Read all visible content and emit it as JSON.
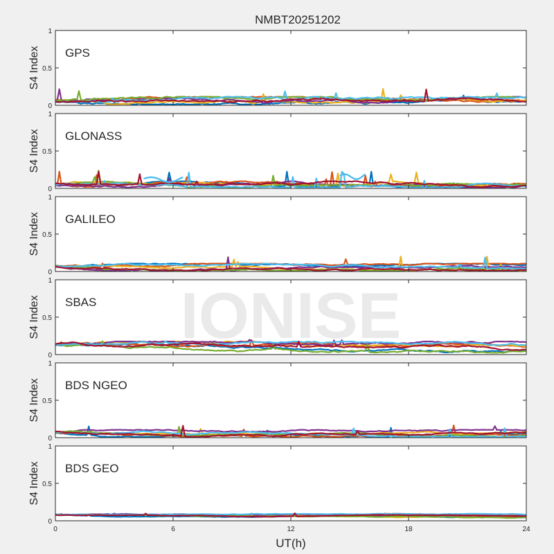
{
  "figure_title": "NMBT20251202",
  "watermark": "IONISE",
  "colors": {
    "background": "#f0f0f0",
    "series": [
      "#0072BD",
      "#D95319",
      "#EDB120",
      "#7E2F8E",
      "#77AC30",
      "#4DBEEE",
      "#A2142F"
    ],
    "watermark": "#e6e6e6"
  },
  "chart_data": [
    {
      "type": "line",
      "panel_label": "GPS",
      "ylabel": "S4 Index",
      "ylim": [
        0,
        1
      ],
      "yticks": [
        "0",
        "0.5",
        "1"
      ],
      "xlim": [
        0,
        24
      ],
      "baseline_s4": 0.06,
      "noise": 0.03,
      "spikes_max": 0.25,
      "seed": 11,
      "x_tick_labels_shown": false
    },
    {
      "type": "line",
      "panel_label": "GLONASS",
      "ylabel": "S4 Index",
      "ylim": [
        0,
        1
      ],
      "yticks": [
        "0",
        "0.5",
        "1"
      ],
      "xlim": [
        0,
        24
      ],
      "baseline_s4": 0.05,
      "noise": 0.025,
      "spikes_max": 0.24,
      "seed": 23,
      "highlighted_arcs": [
        {
          "x_start": 4.5,
          "x_end": 6.5,
          "value": 0.13
        },
        {
          "x_start": 14.5,
          "x_end": 15.8,
          "value": 0.17
        }
      ],
      "x_tick_labels_shown": false
    },
    {
      "type": "line",
      "panel_label": "GALILEO",
      "ylabel": "S4 Index",
      "ylim": [
        0,
        1
      ],
      "yticks": [
        "0",
        "0.5",
        "1"
      ],
      "xlim": [
        0,
        24
      ],
      "baseline_s4": 0.07,
      "noise": 0.02,
      "spikes_max": 0.23,
      "seed": 37,
      "x_tick_labels_shown": false
    },
    {
      "type": "line",
      "panel_label": "SBAS",
      "ylabel": "S4 Index",
      "ylim": [
        0,
        1
      ],
      "yticks": [
        "0",
        "0.5",
        "1"
      ],
      "xlim": [
        0,
        24
      ],
      "baseline_s4": 0.13,
      "noise": 0.025,
      "spikes_max": 0.2,
      "seed": 41,
      "x_tick_labels_shown": false
    },
    {
      "type": "line",
      "panel_label": "BDS NGEO",
      "ylabel": "S4 Index",
      "ylim": [
        0,
        1
      ],
      "yticks": [
        "0",
        "0.5",
        "1"
      ],
      "xlim": [
        0,
        24
      ],
      "baseline_s4": 0.07,
      "noise": 0.02,
      "spikes_max": 0.18,
      "seed": 53,
      "x_tick_labels_shown": false
    },
    {
      "type": "line",
      "panel_label": "BDS GEO",
      "ylabel": "S4 Index",
      "ylim": [
        0,
        1
      ],
      "yticks": [
        "0",
        "0.5",
        "1"
      ],
      "xlim": [
        0,
        24
      ],
      "baseline_s4": 0.08,
      "noise": 0.008,
      "spikes_max": 0.1,
      "seed": 67,
      "x_tick_labels_shown": true
    }
  ],
  "xaxis": {
    "label": "UT(h)",
    "ticks": [
      0,
      6,
      12,
      18,
      24
    ],
    "tick_labels": [
      "0",
      "6",
      "12",
      "18",
      "24"
    ]
  }
}
